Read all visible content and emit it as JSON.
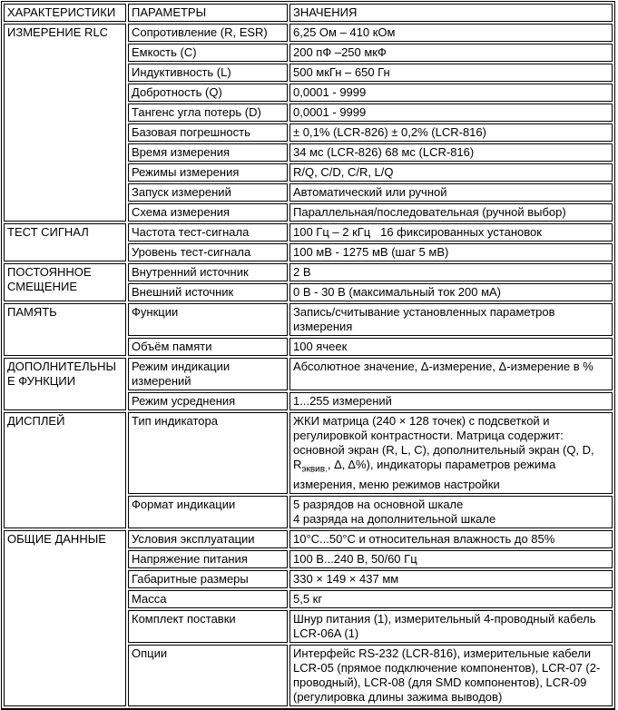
{
  "colors": {
    "background": "#ffffff",
    "text": "#000000",
    "border": "#000000"
  },
  "table": {
    "header": {
      "characteristics": "ХАРАКТЕРИСТИКИ",
      "parameters": "ПАРАМЕТРЫ",
      "values": "ЗНАЧЕНИЯ"
    },
    "sections": [
      {
        "name": "ИЗМЕРЕНИЕ RLC",
        "rows": [
          {
            "param": "Сопротивление (R, ESR)",
            "value": "6,25 Ом – 410 кОм"
          },
          {
            "param": "Емкость (C)",
            "value": "200 пФ –250 мкФ"
          },
          {
            "param": "Индуктивность (L)",
            "value": "500 мкГн – 650 Гн"
          },
          {
            "param": "Добротность (Q)",
            "value": "0,0001 - 9999"
          },
          {
            "param": "Тангенс угла потерь (D)",
            "value": "0,0001 - 9999"
          },
          {
            "param": "Базовая погрешность",
            "value": "± 0,1% (LCR-826) ± 0,2% (LCR-816)"
          },
          {
            "param": "Время измерения",
            "value": "34 мс (LCR-826) 68 мс (LCR-816)"
          },
          {
            "param": "Режимы измерения",
            "value": "R/Q, C/D, C/R, L/Q"
          },
          {
            "param": "Запуск измерений",
            "value": "Автоматический или ручной"
          },
          {
            "param": "Схема измерения",
            "value": "Параллельная/последовательная (ручной выбор)"
          }
        ]
      },
      {
        "name": "ТЕСТ СИГНАЛ",
        "rows": [
          {
            "param": "Частота тест-сигнала",
            "value": "100 Гц – 2 кГц   16 фиксированных установок"
          },
          {
            "param": "Уровень тест-сигнала",
            "value": "100 мВ - 1275 мВ (шаг 5 мВ)"
          }
        ]
      },
      {
        "name": "ПОСТОЯННОЕ СМЕЩЕНИЕ",
        "rows": [
          {
            "param": "Внутренний источник",
            "value": "2 В"
          },
          {
            "param": "Внешний источник",
            "value": "0 В - 30 В (максимальный ток 200 мА)"
          }
        ]
      },
      {
        "name": "ПАМЯТЬ",
        "rows": [
          {
            "param": "Функции",
            "value": "Запись/считывание установленных параметров измерения"
          },
          {
            "param": "Объём памяти",
            "value": "100 ячеек"
          }
        ]
      },
      {
        "name": "ДОПОЛНИТЕЛЬНЫЕ ФУНКЦИИ",
        "rows": [
          {
            "param": "Режим индикации измерений",
            "value": "Абсолютное значение, Δ-измерение, Δ-измерение в %"
          },
          {
            "param": "Режим усреднения",
            "value": "1...255 измерений"
          }
        ]
      },
      {
        "name": "ДИСПЛЕЙ",
        "rows": [
          {
            "param": "Тип индикатора",
            "value": [
              "ЖКИ матрица (240 × 128 точек) с подсветкой и регулировкой контрастности. Матрица содержит: основной экран (R, L, C), дополнительный экран (Q, D, R",
              {
                "sub": "эквив."
              },
              ", Δ, Δ%), индикаторы параметров режима измерения, меню режимов настройки"
            ]
          },
          {
            "param": "Формат индикации",
            "value": "5 разрядов на основной шкале\n4 разряда на дополнительной шкале"
          }
        ]
      },
      {
        "name": "ОБЩИЕ ДАННЫЕ",
        "rows": [
          {
            "param": "Условия эксплуатации",
            "value": "10°C...50°C и относительная влажность до 85%"
          },
          {
            "param": "Напряжение питания",
            "value": "100 В...240 В, 50/60 Гц"
          },
          {
            "param": "Габаритные размеры",
            "value": "330 × 149 × 437 мм"
          },
          {
            "param": "Масса",
            "value": "5,5 кг"
          },
          {
            "param": "Комплект поставки",
            "value": "Шнур питания (1), измерительный 4-проводный кабель LCR-06A (1)"
          },
          {
            "param": "Опции",
            "value": "Интерфейс RS-232 (LCR-816), измерительные кабели LCR-05 (прямое подключение компонентов), LCR-07 (2-проводный), LCR-08 (для SMD компонентов), LCR-09 (регулировка длины зажима выводов)"
          }
        ]
      }
    ]
  }
}
